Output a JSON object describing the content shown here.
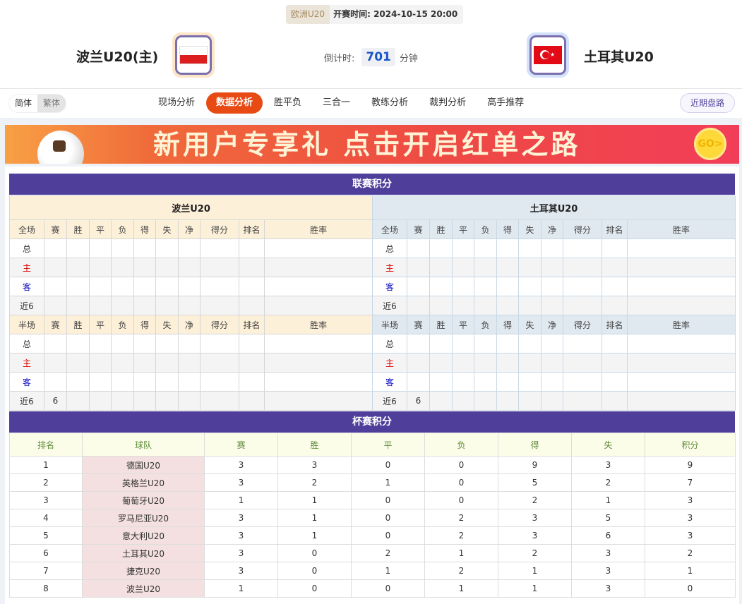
{
  "match": {
    "league": "欧洲U20",
    "kickoff_label": "开赛时间:",
    "kickoff": "2024-10-15 20:00",
    "home": "波兰U20(主)",
    "away": "土耳其U20",
    "countdown_label": "倒计时:",
    "countdown_value": "701",
    "countdown_unit": "分钟"
  },
  "nav": {
    "lang": [
      "简体",
      "繁体"
    ],
    "tabs": [
      "现场分析",
      "数据分析",
      "胜平负",
      "三合一",
      "教练分析",
      "裁判分析",
      "高手推荐"
    ],
    "active_tab": "数据分析",
    "recent": "近期盘路"
  },
  "banner": {
    "text": "新用户专享礼  点击开启红单之路",
    "go": "GO>"
  },
  "colors": {
    "accent": "#e84a14",
    "section": "#4f3f9b",
    "home_header": "#fdf0d9",
    "away_header": "#e0e8f0"
  },
  "league": {
    "title": "联赛积分",
    "columns": [
      "赛",
      "胜",
      "平",
      "负",
      "得",
      "失",
      "净",
      "得分",
      "排名",
      "胜率"
    ],
    "full_label": "全场",
    "half_label": "半场",
    "row_labels": [
      "总",
      "主",
      "客",
      "近6"
    ],
    "teams": [
      {
        "name": "波兰U20",
        "full": [
          [
            "",
            "",
            "",
            "",
            "",
            "",
            "",
            "",
            "",
            ""
          ],
          [
            "",
            "",
            "",
            "",
            "",
            "",
            "",
            "",
            "",
            ""
          ],
          [
            "",
            "",
            "",
            "",
            "",
            "",
            "",
            "",
            "",
            ""
          ],
          [
            "",
            "",
            "",
            "",
            "",
            "",
            "",
            "",
            "",
            ""
          ]
        ],
        "half": [
          [
            "",
            "",
            "",
            "",
            "",
            "",
            "",
            "",
            "",
            ""
          ],
          [
            "",
            "",
            "",
            "",
            "",
            "",
            "",
            "",
            "",
            ""
          ],
          [
            "",
            "",
            "",
            "",
            "",
            "",
            "",
            "",
            "",
            ""
          ],
          [
            "6",
            "",
            "",
            "",
            "",
            "",
            "",
            "",
            "",
            ""
          ]
        ]
      },
      {
        "name": "土耳其U20",
        "full": [
          [
            "",
            "",
            "",
            "",
            "",
            "",
            "",
            "",
            "",
            ""
          ],
          [
            "",
            "",
            "",
            "",
            "",
            "",
            "",
            "",
            "",
            ""
          ],
          [
            "",
            "",
            "",
            "",
            "",
            "",
            "",
            "",
            "",
            ""
          ],
          [
            "",
            "",
            "",
            "",
            "",
            "",
            "",
            "",
            "",
            ""
          ]
        ],
        "half": [
          [
            "",
            "",
            "",
            "",
            "",
            "",
            "",
            "",
            "",
            ""
          ],
          [
            "",
            "",
            "",
            "",
            "",
            "",
            "",
            "",
            "",
            ""
          ],
          [
            "",
            "",
            "",
            "",
            "",
            "",
            "",
            "",
            "",
            ""
          ],
          [
            "6",
            "",
            "",
            "",
            "",
            "",
            "",
            "",
            "",
            ""
          ]
        ]
      }
    ]
  },
  "cup": {
    "title": "杯赛积分",
    "columns": [
      "排名",
      "球队",
      "赛",
      "胜",
      "平",
      "负",
      "得",
      "失",
      "积分"
    ],
    "rows": [
      [
        "1",
        "德国U20",
        "3",
        "3",
        "0",
        "0",
        "9",
        "3",
        "9"
      ],
      [
        "2",
        "英格兰U20",
        "3",
        "2",
        "1",
        "0",
        "5",
        "2",
        "7"
      ],
      [
        "3",
        "葡萄牙U20",
        "1",
        "1",
        "0",
        "0",
        "2",
        "1",
        "3"
      ],
      [
        "4",
        "罗马尼亚U20",
        "3",
        "1",
        "0",
        "2",
        "3",
        "5",
        "3"
      ],
      [
        "5",
        "意大利U20",
        "3",
        "1",
        "0",
        "2",
        "3",
        "6",
        "3"
      ],
      [
        "6",
        "土耳其U20",
        "3",
        "0",
        "2",
        "1",
        "2",
        "3",
        "2"
      ],
      [
        "7",
        "捷克U20",
        "3",
        "0",
        "1",
        "2",
        "1",
        "3",
        "1"
      ],
      [
        "8",
        "波兰U20",
        "1",
        "0",
        "0",
        "1",
        "1",
        "3",
        "0"
      ]
    ]
  }
}
